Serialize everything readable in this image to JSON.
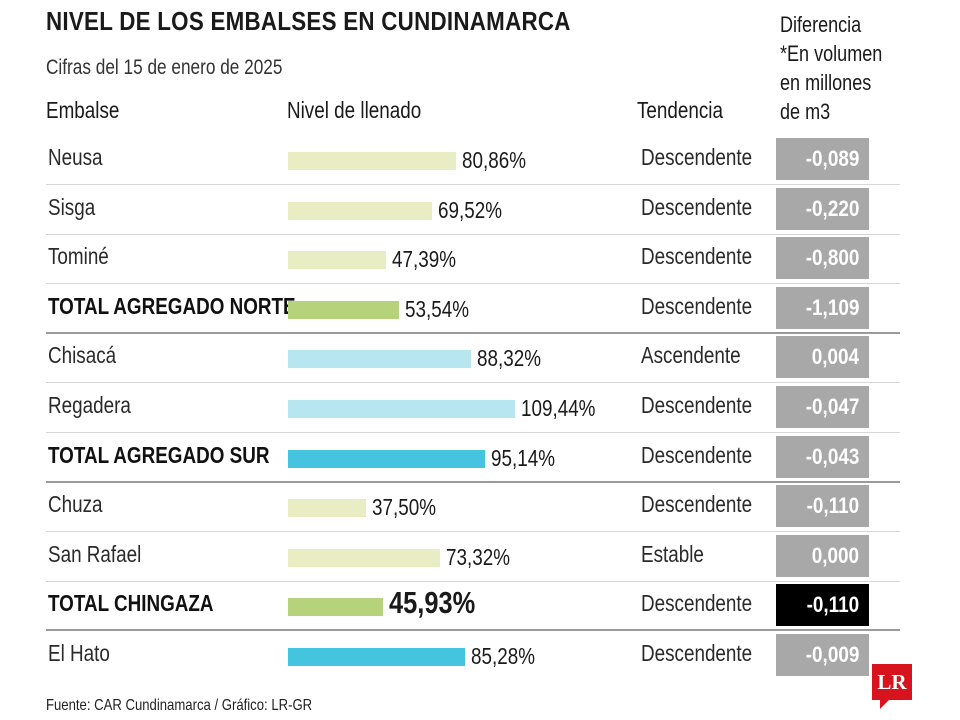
{
  "header": {
    "title": "NIVEL DE LOS EMBALSES EN CUNDINAMARCA",
    "subtitle": "Cifras del 15 de enero de 2025",
    "diff_header": [
      "Diferencia",
      "*En volumen",
      "en millones",
      "de m3"
    ]
  },
  "columns": {
    "embalse": "Embalse",
    "nivel": "Nivel de llenado",
    "tendencia": "Tendencia"
  },
  "colors": {
    "bar_light_green": "#e8edc4",
    "bar_green": "#b6d27a",
    "bar_light_blue": "#b8e6f0",
    "bar_blue": "#44c4de",
    "diff_box": "#a8a8a8",
    "diff_box_highlight": "#000000",
    "brand_red": "#d7141e"
  },
  "chart_data": {
    "type": "bar",
    "categories": [
      "Neusa",
      "Sisga",
      "Tominé",
      "TOTAL AGREGADO NORTE",
      "Chisacá",
      "Regadera",
      "TOTAL AGREGADO SUR",
      "Chuza",
      "San Rafael",
      "TOTAL CHINGAZA",
      "El Hato"
    ],
    "values": [
      80.86,
      69.52,
      47.39,
      53.54,
      88.32,
      109.44,
      95.14,
      37.5,
      73.32,
      45.93,
      85.28
    ],
    "value_labels": [
      "80,86%",
      "69,52%",
      "47,39%",
      "53,54%",
      "88,32%",
      "109,44%",
      "95,14%",
      "37,50%",
      "73,32%",
      "45,93%",
      "85,28%"
    ],
    "orientation": "horizontal",
    "xlim": [
      0,
      109.44
    ]
  },
  "rows": [
    {
      "name": "Neusa",
      "pct": "80,86%",
      "value": 80.86,
      "trend": "Descendente",
      "diff": "-0,089",
      "bar_color": "#e8edc4",
      "total": false,
      "highlight": false,
      "group_end": false
    },
    {
      "name": "Sisga",
      "pct": "69,52%",
      "value": 69.52,
      "trend": "Descendente",
      "diff": "-0,220",
      "bar_color": "#e8edc4",
      "total": false,
      "highlight": false,
      "group_end": false
    },
    {
      "name": "Tominé",
      "pct": "47,39%",
      "value": 47.39,
      "trend": "Descendente",
      "diff": "-0,800",
      "bar_color": "#e8edc4",
      "total": false,
      "highlight": false,
      "group_end": false
    },
    {
      "name": "TOTAL AGREGADO NORTE",
      "pct": "53,54%",
      "value": 53.54,
      "trend": "Descendente",
      "diff": "-1,109",
      "bar_color": "#b6d27a",
      "total": true,
      "highlight": false,
      "group_end": true
    },
    {
      "name": "Chisacá",
      "pct": "88,32%",
      "value": 88.32,
      "trend": "Ascendente",
      "diff": "0,004",
      "bar_color": "#b8e6f0",
      "total": false,
      "highlight": false,
      "group_end": false
    },
    {
      "name": "Regadera",
      "pct": "109,44%",
      "value": 109.44,
      "trend": "Descendente",
      "diff": "-0,047",
      "bar_color": "#b8e6f0",
      "total": false,
      "highlight": false,
      "group_end": false
    },
    {
      "name": "TOTAL AGREGADO SUR",
      "pct": "95,14%",
      "value": 95.14,
      "trend": "Descendente",
      "diff": "-0,043",
      "bar_color": "#44c4de",
      "total": true,
      "highlight": false,
      "group_end": true
    },
    {
      "name": "Chuza",
      "pct": "37,50%",
      "value": 37.5,
      "trend": "Descendente",
      "diff": "-0,110",
      "bar_color": "#e8edc4",
      "total": false,
      "highlight": false,
      "group_end": false
    },
    {
      "name": "San Rafael",
      "pct": "73,32%",
      "value": 73.32,
      "trend": "Estable",
      "diff": "0,000",
      "bar_color": "#e8edc4",
      "total": false,
      "highlight": false,
      "group_end": false
    },
    {
      "name": "TOTAL CHINGAZA",
      "pct": "45,93%",
      "value": 45.93,
      "trend": "Descendente",
      "diff": "-0,110",
      "bar_color": "#b6d27a",
      "total": true,
      "highlight": true,
      "group_end": true
    },
    {
      "name": "El Hato",
      "pct": "85,28%",
      "value": 85.28,
      "trend": "Descendente",
      "diff": "-0,009",
      "bar_color": "#44c4de",
      "total": false,
      "highlight": false,
      "group_end": false
    }
  ],
  "footer": {
    "source": "Fuente: CAR Cundinamarca / Gráfico: LR-GR",
    "logo_text": "LR"
  }
}
